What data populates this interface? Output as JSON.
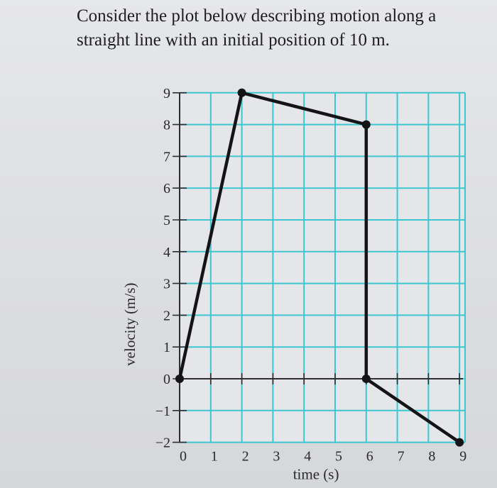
{
  "question": {
    "text": "Consider the plot below describing motion along a straight line with an initial position of 10 m."
  },
  "chart_data": {
    "type": "line",
    "title": "",
    "xlabel": "time (s)",
    "ylabel": "velocity (m/s)",
    "xlim": [
      0,
      9
    ],
    "ylim": [
      -2,
      9
    ],
    "xticks": [
      0,
      1,
      2,
      3,
      4,
      5,
      6,
      7,
      8,
      9
    ],
    "yticks": [
      -2,
      -1,
      0,
      1,
      2,
      3,
      4,
      5,
      6,
      7,
      8,
      9
    ],
    "xtick_labels": [
      "0",
      "1",
      "2",
      "3",
      "4",
      "5",
      "6",
      "7",
      "8",
      "9"
    ],
    "ytick_labels": [
      "−2",
      "−1",
      "0",
      "1",
      "2",
      "3",
      "4",
      "5",
      "6",
      "7",
      "8",
      "9"
    ],
    "grid": true,
    "grid_color": "#3cc6cf",
    "line_color": "#141416",
    "series": [
      {
        "x": [
          0,
          2,
          6,
          6,
          9
        ],
        "y": [
          0,
          9,
          8,
          0,
          -2
        ]
      }
    ]
  }
}
